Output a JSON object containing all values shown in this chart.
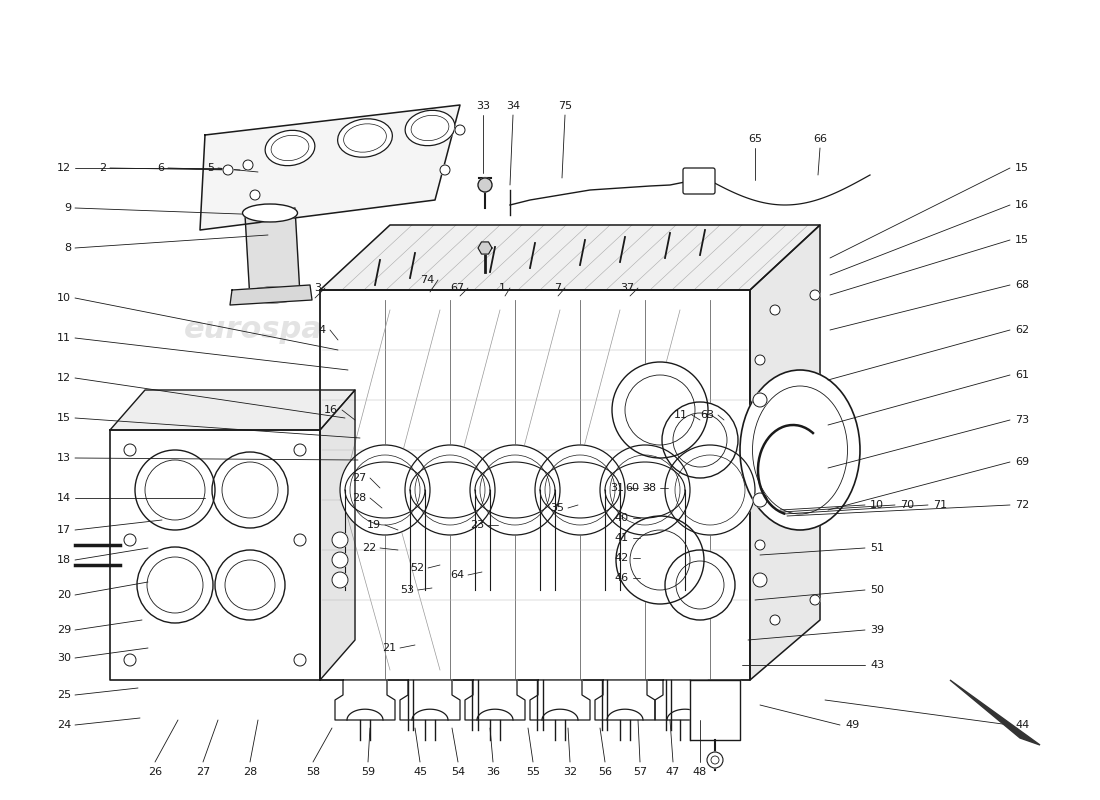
{
  "bg_color": "#ffffff",
  "black": "#1a1a1a",
  "gray": "#888888",
  "light_gray": "#e0e0e0",
  "watermark_color": "#c8c8c8",
  "watermark_alpha": 0.5,
  "fig_width": 11.0,
  "fig_height": 8.0,
  "dpi": 100
}
